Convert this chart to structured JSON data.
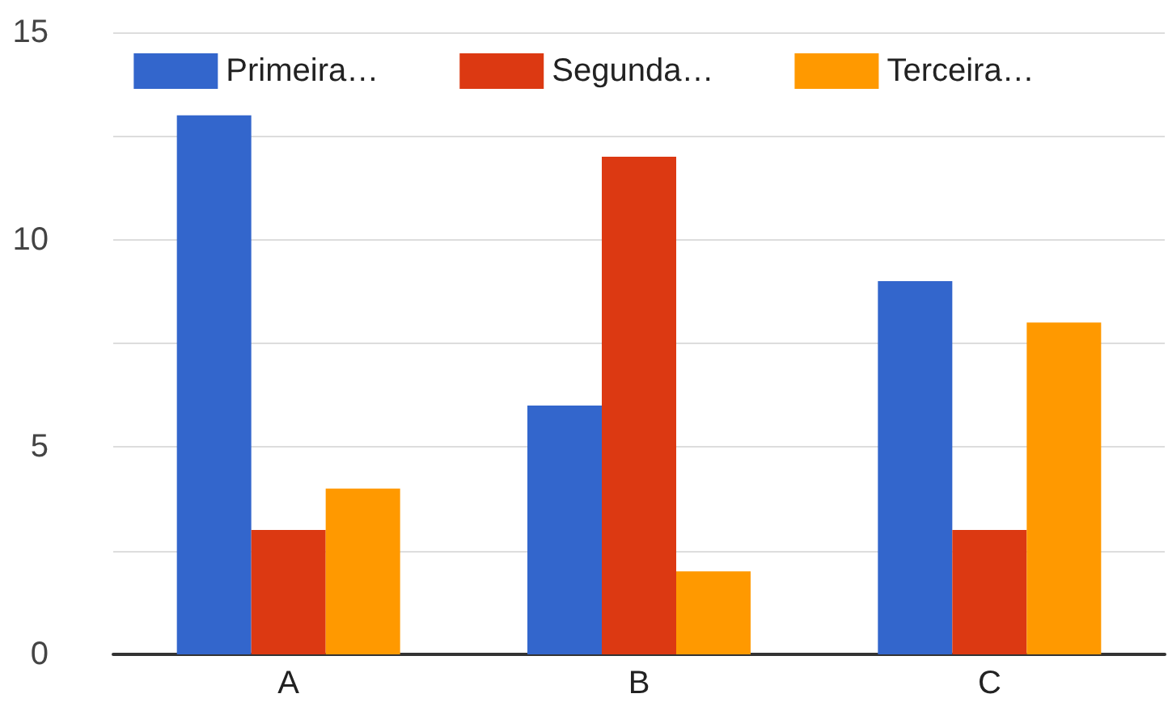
{
  "chart_data": {
    "type": "bar",
    "categories": [
      "A",
      "B",
      "C"
    ],
    "series": [
      {
        "name": "Primeira…",
        "color": "#3366cc",
        "values": [
          13,
          6,
          9
        ]
      },
      {
        "name": "Segunda…",
        "color": "#dc3912",
        "values": [
          3,
          12,
          3
        ]
      },
      {
        "name": "Terceira…",
        "color": "#ff9900",
        "values": [
          4,
          2,
          8
        ]
      }
    ],
    "ylim": [
      0,
      15
    ],
    "yticks": [
      0,
      {
        "value": 2.5,
        "label": null
      },
      5,
      {
        "value": 7.5,
        "label": null
      },
      10,
      {
        "value": 12.5,
        "label": null
      },
      15
    ],
    "grid": "y",
    "legend": "top"
  }
}
